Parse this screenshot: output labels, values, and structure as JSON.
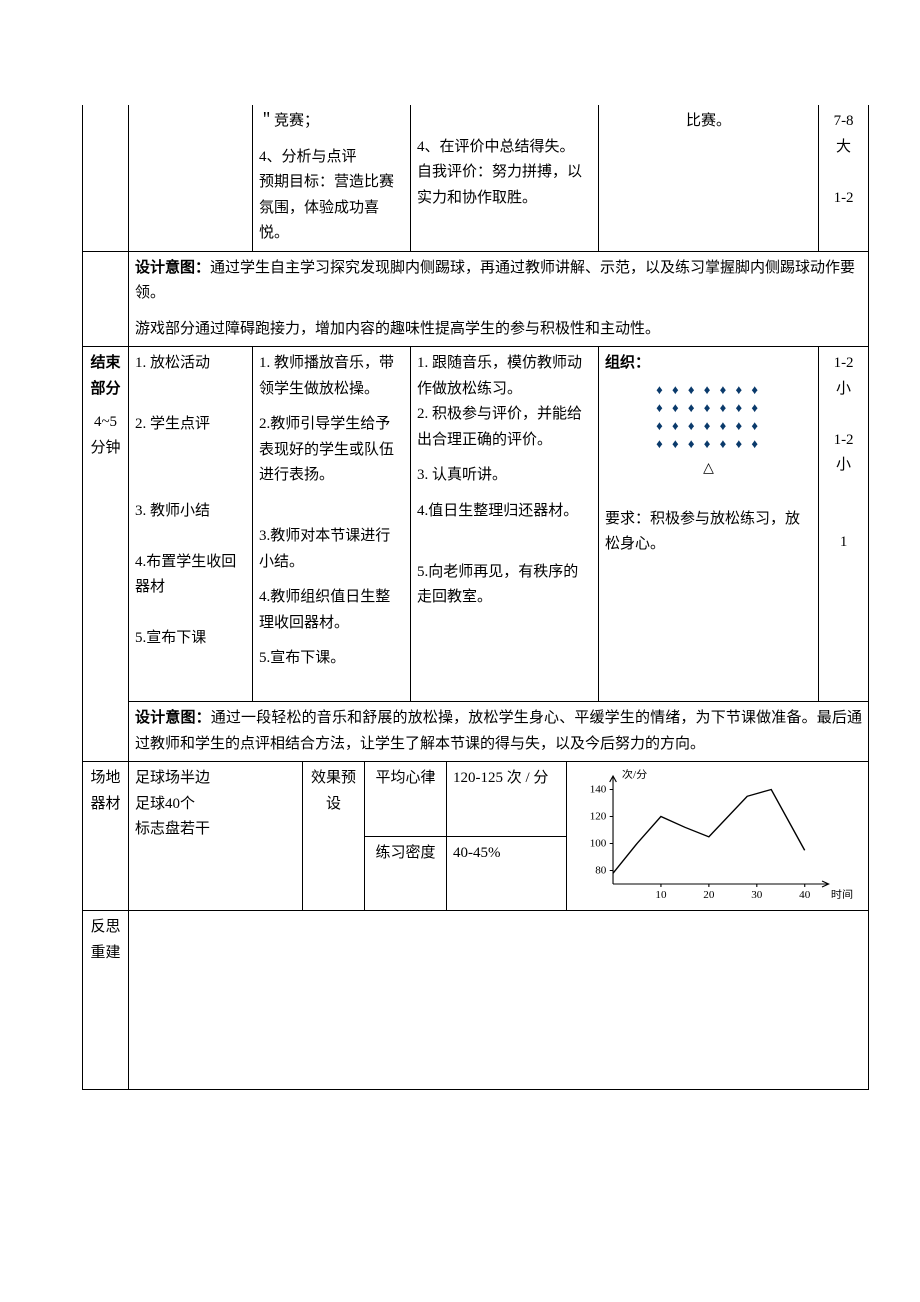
{
  "row1": {
    "col2_p1": "＂竞赛；",
    "col2_p2": "4、分析与点评",
    "col2_p3": "预期目标：营造比赛氛围，体验成功喜悦。",
    "col3_p1": "4、在评价中总结得失。",
    "col3_p2": "自我评价：努力拼搏，以实力和协作取胜。",
    "col4": "比赛。",
    "col5_p1": "7-8",
    "col5_p2": "大",
    "col5_p3": "1-2"
  },
  "row2": {
    "intent_label": "设计意图：",
    "intent_p1_rest": "通过学生自主学习探究发现脚内侧踢球，再通过教师讲解、示范，以及练习掌握脚内侧踢球动作要领。",
    "intent_p2": "游戏部分通过障碍跑接力，增加内容的趣味性提高学生的参与积极性和主动性。"
  },
  "row3": {
    "label_p1": "结束部分",
    "label_p2": "4~5分钟",
    "col1_p1": "1. 放松活动",
    "col1_p2": "2. 学生点评",
    "col1_p3": "3. 教师小结",
    "col1_p4": "4.布置学生收回器材",
    "col1_p5": "5.宣布下课",
    "col2_p1": "1. 教师播放音乐，带领学生做放松操。",
    "col2_p2": "2.教师引导学生给予表现好的学生或队伍进行表扬。",
    "col2_p3": "3.教师对本节课进行小结。",
    "col2_p4": "4.教师组织值日生整理收回器材。",
    "col2_p5": "5.宣布下课。",
    "col3_p1": "1. 跟随音乐，模仿教师动作做放松练习。",
    "col3_p2": "2. 积极参与评价，并能给出合理正确的评价。",
    "col3_p3": "3. 认真听讲。",
    "col3_p4": "4.值日生整理归还器材。",
    "col3_p5": "5.向老师再见，有秩序的走回教室。",
    "col4_org_label": "组织：",
    "formation_row1": "♦ ♦ ♦ ♦ ♦ ♦ ♦",
    "formation_row2": "♦ ♦ ♦ ♦ ♦ ♦ ♦",
    "formation_row3": "♦ ♦ ♦ ♦ ♦ ♦ ♦",
    "formation_row4": "♦ ♦ ♦ ♦ ♦ ♦ ♦",
    "formation_triangle": "△",
    "col4_req": "要求：积极参与放松练习，放松身心。",
    "col5_p1": "1-2",
    "col5_p2": "小",
    "col5_p3": "1-2",
    "col5_p4": "小",
    "col5_p5": "1"
  },
  "row4": {
    "intent_label": "设计意图：",
    "intent_rest": "通过一段轻松的音乐和舒展的放松操，放松学生身心、平缓学生的情绪，为下节课做准备。最后通过教师和学生的点评相结合方法，让学生了解本节课的得与失，以及今后努力的方向。"
  },
  "row5": {
    "label": "场地器材",
    "equip_p1": "足球场半边",
    "equip_p2": "足球40个",
    "equip_p3": "标志盘若干",
    "effect_label": "效果预设",
    "hr_label": "平均心律",
    "hr_value": "120-125 次 / 分",
    "density_label": "练习密度",
    "density_value": "40-45%"
  },
  "row6": {
    "label": "反思重建"
  },
  "chart": {
    "y_axis_label": "次/分",
    "x_axis_label": "时间",
    "y_ticks": [
      80,
      100,
      120,
      140
    ],
    "x_ticks": [
      10,
      20,
      30,
      40
    ],
    "line_color": "#000000",
    "axis_color": "#000000",
    "points": [
      {
        "t": 0,
        "v": 78
      },
      {
        "t": 5,
        "v": 100
      },
      {
        "t": 10,
        "v": 120
      },
      {
        "t": 15,
        "v": 112
      },
      {
        "t": 20,
        "v": 105
      },
      {
        "t": 28,
        "v": 135
      },
      {
        "t": 33,
        "v": 140
      },
      {
        "t": 40,
        "v": 95
      }
    ]
  },
  "style": {
    "text_color": "#000000",
    "background": "#ffffff",
    "border_color": "#000000",
    "formation_color": "#0a3a6b",
    "base_fontsize": 15
  }
}
